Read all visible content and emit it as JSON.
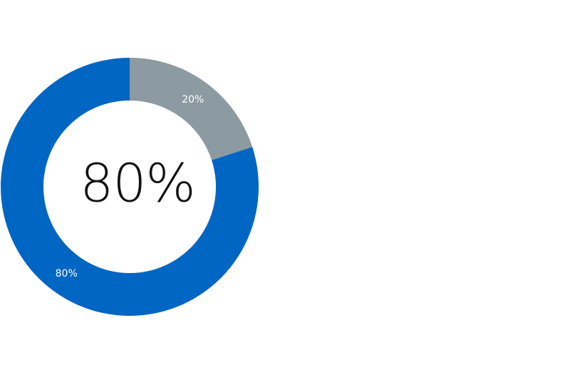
{
  "chart_data": {
    "type": "pie",
    "categories": [
      "",
      ""
    ],
    "values": [
      20,
      80
    ],
    "value_labels": [
      "20%",
      "80%"
    ],
    "colors": [
      "#8c9aa2",
      "#0066c3"
    ],
    "center_label": "80%",
    "title": "",
    "legend": "none"
  }
}
